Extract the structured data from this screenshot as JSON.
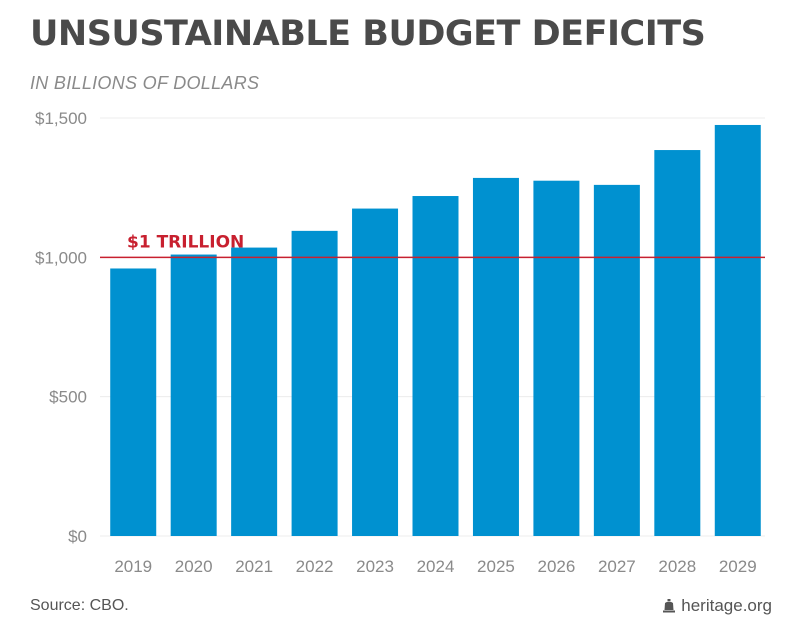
{
  "chart_data": {
    "type": "bar",
    "title": "UNSUSTAINABLE BUDGET DEFICITS",
    "subtitle": "IN BILLIONS OF DOLLARS",
    "categories": [
      "2019",
      "2020",
      "2021",
      "2022",
      "2023",
      "2024",
      "2025",
      "2026",
      "2027",
      "2028",
      "2029"
    ],
    "values": [
      960,
      1010,
      1035,
      1095,
      1175,
      1220,
      1285,
      1275,
      1260,
      1385,
      1475
    ],
    "ylim": [
      0,
      1500
    ],
    "yticks": [
      0,
      500,
      1000,
      1500
    ],
    "ytick_labels": [
      "$0",
      "$500",
      "$1,000",
      "$1,500"
    ],
    "xlabel": "",
    "ylabel": "",
    "grid": true,
    "reference_line": {
      "value": 1000,
      "label": "$1 TRILLION",
      "color": "#c8202f"
    },
    "bar_color": "#0091d0"
  },
  "footer": {
    "source": "Source: CBO.",
    "brand": "heritage.org",
    "brand_icon": "heritage-bell-icon"
  }
}
